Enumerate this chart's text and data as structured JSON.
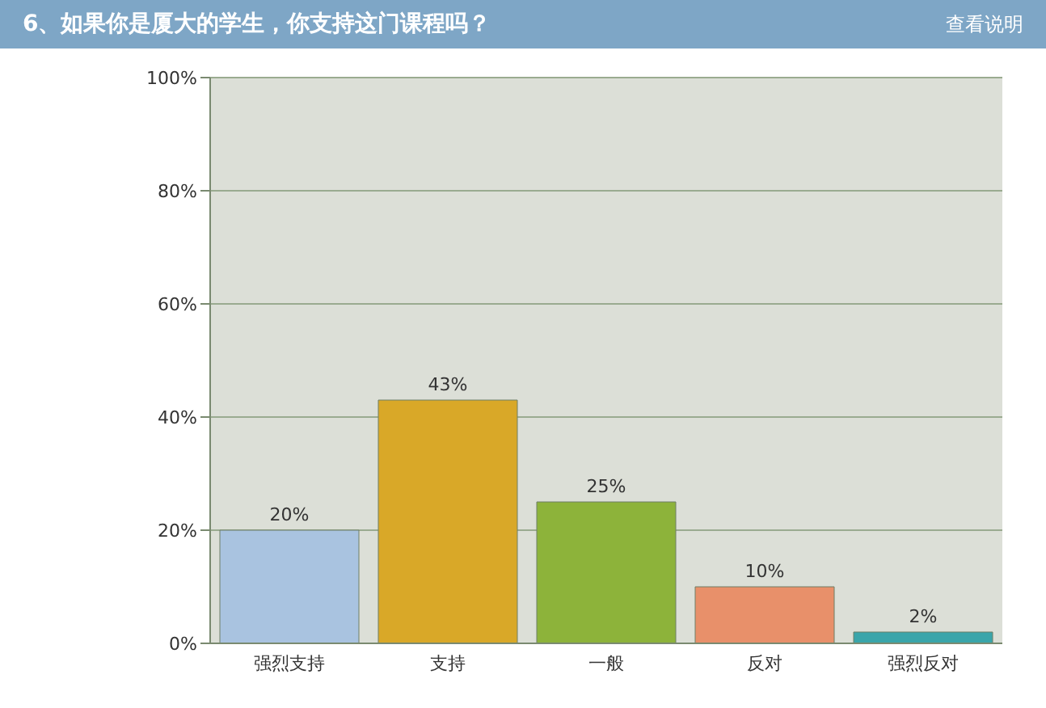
{
  "chart_data": {
    "type": "bar",
    "title": "6、如果你是厦大的学生，你支持这门课程吗？",
    "annotations": [
      "查看说明"
    ],
    "categories": [
      "强烈支持",
      "支持",
      "一般",
      "反对",
      "强烈反对"
    ],
    "values": [
      20,
      43,
      25,
      10,
      2
    ],
    "colors": [
      "#a9c3e0",
      "#d9a828",
      "#8db33a",
      "#e8906a",
      "#3aa5aa"
    ],
    "value_labels": [
      "20%",
      "43%",
      "25%",
      "10%",
      "2%"
    ],
    "ylim": [
      0,
      100
    ],
    "yticks": [
      {
        "value": 0,
        "label": "0%"
      },
      {
        "value": 20,
        "label": "20%"
      },
      {
        "value": 40,
        "label": "40%"
      },
      {
        "value": 60,
        "label": "60%"
      },
      {
        "value": 80,
        "label": "80%"
      },
      {
        "value": 100,
        "label": "100%"
      }
    ],
    "grid": "y"
  }
}
